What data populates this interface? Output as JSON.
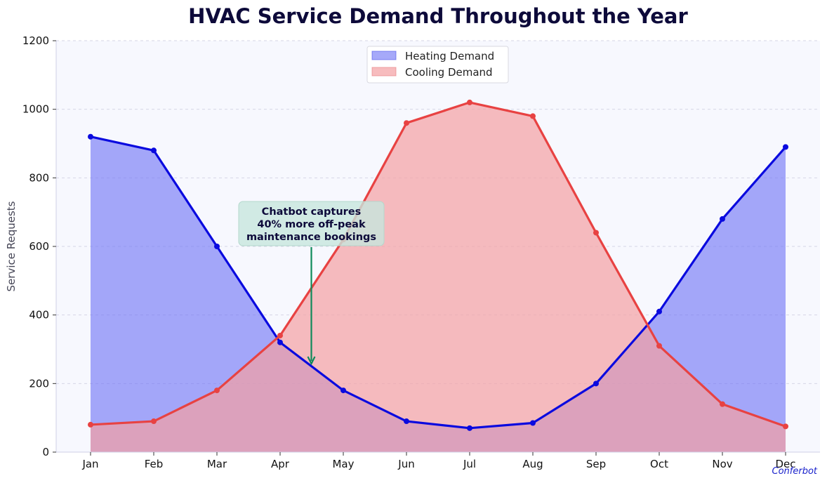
{
  "chart_data": {
    "type": "area",
    "title": "HVAC Service Demand Throughout the Year",
    "xlabel": "",
    "ylabel": "Service Requests",
    "categories": [
      "Jan",
      "Feb",
      "Mar",
      "Apr",
      "May",
      "Jun",
      "Jul",
      "Aug",
      "Sep",
      "Oct",
      "Nov",
      "Dec"
    ],
    "ylim": [
      0,
      1200
    ],
    "yticks": [
      0,
      200,
      400,
      600,
      800,
      1000,
      1200
    ],
    "grid": true,
    "legend_position": "top-center",
    "series": [
      {
        "name": "Heating Demand",
        "values": [
          920,
          880,
          600,
          320,
          180,
          90,
          70,
          85,
          200,
          410,
          680,
          890
        ],
        "line_color": "#0a0adf",
        "fill_color": "#6b6ff5"
      },
      {
        "name": "Cooling Demand",
        "values": [
          80,
          90,
          180,
          340,
          620,
          960,
          1020,
          980,
          640,
          310,
          140,
          75
        ],
        "line_color": "#e84242",
        "fill_color": "#f3a0a3"
      }
    ],
    "annotation": {
      "lines": [
        "Chatbot captures",
        "40% more off-peak",
        "maintenance bookings"
      ],
      "target_x": 4.5,
      "target_y": 250,
      "text_y": 600,
      "box_color": "#c7e6dd",
      "arrow_color": "#0f8a5a"
    },
    "watermark": "Conferbot"
  }
}
